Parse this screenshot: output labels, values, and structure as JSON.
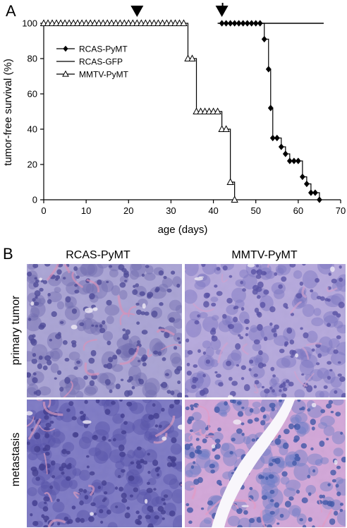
{
  "panel_a_label": "A",
  "panel_b_label": "B",
  "chart_data": {
    "type": "line",
    "xlabel": "age (days)",
    "ylabel": "tumor-free survival (%)",
    "xlim": [
      0,
      70
    ],
    "ylim": [
      0,
      100
    ],
    "xticks": [
      "0",
      "10",
      "20",
      "30",
      "40",
      "50",
      "60",
      "70"
    ],
    "yticks": [
      "0",
      "20",
      "40",
      "60",
      "80",
      "100"
    ],
    "grid": false,
    "legend_position": "top-left",
    "series": [
      {
        "name": "RCAS-PyMT",
        "marker": "filled-diamond",
        "color": "#000000",
        "x": [
          42,
          43,
          44,
          45,
          46,
          47,
          48,
          49,
          50,
          51,
          52,
          53,
          53.5,
          54,
          55,
          56,
          57,
          58,
          59,
          60,
          61,
          62,
          63,
          64,
          65
        ],
        "y": [
          100,
          100,
          100,
          100,
          100,
          100,
          100,
          100,
          100,
          100,
          91,
          74,
          52,
          35,
          35,
          30,
          26,
          22,
          22,
          22,
          13,
          9,
          4,
          4,
          0
        ]
      },
      {
        "name": "RCAS-GFP",
        "marker": "dash",
        "color": "#000000",
        "x": [
          41,
          66
        ],
        "y": [
          100,
          100
        ]
      },
      {
        "name": "MMTV-PyMT",
        "marker": "open-triangle",
        "color": "#000000",
        "x": [
          0,
          1,
          2,
          3,
          4,
          5,
          6,
          7,
          8,
          9,
          10,
          11,
          12,
          13,
          14,
          15,
          16,
          17,
          18,
          19,
          20,
          21,
          22,
          23,
          24,
          25,
          26,
          27,
          28,
          29,
          30,
          31,
          32,
          33,
          34,
          35,
          36,
          37,
          38,
          39,
          40,
          41,
          42,
          43,
          44,
          45
        ],
        "y": [
          100,
          100,
          100,
          100,
          100,
          100,
          100,
          100,
          100,
          100,
          100,
          100,
          100,
          100,
          100,
          100,
          100,
          100,
          100,
          100,
          100,
          100,
          100,
          100,
          100,
          100,
          100,
          100,
          100,
          100,
          100,
          100,
          100,
          100,
          80,
          80,
          50,
          50,
          50,
          50,
          50,
          50,
          40,
          40,
          10,
          0
        ]
      }
    ],
    "annotations": [
      {
        "type": "filled-triangle-down",
        "x": 22,
        "y": 100
      },
      {
        "type": "filled-triangle-down-with-tick",
        "x": 42,
        "y": 100
      }
    ]
  },
  "histology": {
    "column_labels": [
      "RCAS-PyMT",
      "MMTV-PyMT"
    ],
    "row_labels": [
      "primary tumor",
      "metastasis"
    ],
    "panels": [
      {
        "name": "rcas-primary",
        "base": "#a9a3d4",
        "cell": "#6f6ab0",
        "nucleus": "#4b4796",
        "accent": "#d890b9"
      },
      {
        "name": "mmtv-primary",
        "base": "#b5a8dc",
        "cell": "#7b73c0",
        "nucleus": "#564fa4",
        "accent": "#cfa0cf"
      },
      {
        "name": "rcas-metastasis",
        "base": "#7d79c4",
        "cell": "#5550a8",
        "nucleus": "#3e3a8d",
        "accent": "#d99ac0"
      },
      {
        "name": "mmtv-metastasis",
        "base": "#d2a6d8",
        "cell": "#6c7cc8",
        "nucleus": "#3f55a8",
        "accent": "#e49ac6"
      }
    ]
  }
}
